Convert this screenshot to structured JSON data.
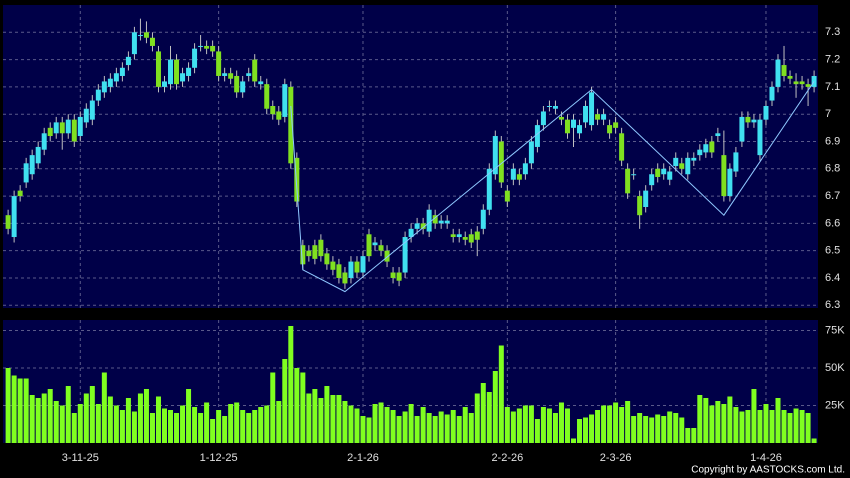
{
  "chart_data": [
    {
      "type": "candlestick",
      "up_color": "#40e0f0",
      "down_color": "#80e020",
      "open": [
        6.63,
        6.55,
        6.72,
        6.75,
        6.78,
        6.82,
        6.87,
        6.95,
        6.93,
        6.97,
        6.93,
        6.98,
        6.92,
        6.97,
        6.98,
        7.05,
        7.08,
        7.1,
        7.12,
        7.14,
        7.18,
        7.22,
        7.29,
        7.3,
        7.28,
        7.23,
        7.1,
        7.11,
        7.2,
        7.12,
        7.14,
        7.17,
        7.25,
        7.25,
        7.25,
        7.23,
        7.14,
        7.15,
        7.14,
        7.08,
        7.14,
        7.2,
        7.11,
        7.11,
        7.03,
        7.01,
        6.99,
        7.1,
        6.84,
        6.52,
        6.5,
        6.52,
        6.54,
        6.49,
        6.46,
        6.45,
        6.42,
        6.4,
        6.46,
        6.42,
        6.56,
        6.52,
        6.52,
        6.5,
        6.42,
        6.42,
        6.42,
        6.55,
        6.58,
        6.6,
        6.57,
        6.63,
        6.6,
        6.6,
        6.56,
        6.55,
        6.55,
        6.56,
        6.57,
        6.58,
        6.65,
        6.78,
        6.9,
        6.72,
        6.76,
        6.78,
        6.78,
        6.82,
        6.88,
        6.96,
        7.03,
        7.02,
        6.99,
        6.98,
        6.95,
        6.93,
        6.97,
        6.96,
        7.0,
        6.98,
        6.96,
        6.97,
        6.93,
        6.8,
        6.78,
        6.7,
        6.66,
        6.74,
        6.8,
        6.78,
        6.76,
        6.81,
        6.82,
        6.78,
        6.83,
        6.85,
        6.86,
        6.9,
        6.92,
        6.85,
        6.7,
        6.79,
        6.9,
        6.99,
        6.97,
        6.85,
        6.98,
        7.05,
        7.1,
        7.18,
        7.14,
        7.12,
        7.12,
        7.11,
        7.1
      ],
      "high": [
        6.65,
        6.72,
        6.74,
        6.84,
        6.87,
        6.9,
        6.95,
        6.97,
        6.99,
        6.99,
        7.0,
        7.0,
        7.01,
        7.04,
        7.07,
        7.11,
        7.14,
        7.15,
        7.17,
        7.19,
        7.23,
        7.32,
        7.35,
        7.34,
        7.3,
        7.25,
        7.14,
        7.25,
        7.22,
        7.17,
        7.19,
        7.26,
        7.29,
        7.27,
        7.27,
        7.25,
        7.17,
        7.17,
        7.16,
        7.14,
        7.17,
        7.22,
        7.14,
        7.13,
        7.05,
        7.03,
        7.13,
        7.12,
        6.86,
        6.54,
        6.52,
        6.54,
        6.56,
        6.51,
        6.48,
        6.47,
        6.44,
        6.48,
        6.48,
        6.5,
        6.58,
        6.55,
        6.54,
        6.52,
        6.44,
        6.44,
        6.57,
        6.6,
        6.62,
        6.62,
        6.67,
        6.65,
        6.63,
        6.63,
        6.58,
        6.58,
        6.57,
        6.58,
        6.59,
        6.67,
        6.82,
        6.94,
        6.92,
        6.74,
        6.82,
        6.8,
        6.84,
        6.92,
        6.98,
        7.03,
        7.05,
        7.05,
        7.01,
        7.0,
        7.0,
        6.98,
        7.05,
        7.1,
        7.02,
        7.02,
        6.98,
        6.99,
        6.95,
        6.82,
        6.8,
        6.72,
        6.74,
        6.8,
        6.82,
        6.82,
        6.81,
        6.86,
        6.84,
        6.86,
        6.86,
        6.89,
        6.91,
        6.92,
        6.95,
        6.94,
        6.82,
        6.88,
        7.01,
        7.01,
        7.0,
        7.0,
        7.05,
        7.12,
        7.22,
        7.25,
        7.16,
        7.15,
        7.14,
        7.13,
        7.16
      ],
      "low": [
        6.56,
        6.53,
        6.68,
        6.73,
        6.76,
        6.8,
        6.85,
        6.9,
        6.91,
        6.87,
        6.91,
        6.88,
        6.9,
        6.95,
        6.96,
        7.03,
        7.06,
        7.08,
        7.1,
        7.12,
        7.16,
        7.2,
        7.27,
        7.26,
        7.23,
        7.08,
        7.08,
        7.09,
        7.09,
        7.1,
        7.12,
        7.15,
        7.23,
        7.22,
        7.21,
        7.12,
        7.12,
        7.11,
        7.06,
        7.06,
        7.12,
        7.1,
        7.09,
        7.0,
        6.98,
        6.96,
        6.97,
        6.8,
        6.66,
        6.43,
        6.46,
        6.45,
        6.46,
        6.43,
        6.41,
        6.38,
        6.36,
        6.38,
        6.4,
        6.4,
        6.46,
        6.5,
        6.48,
        6.44,
        6.38,
        6.37,
        6.4,
        6.53,
        6.56,
        6.56,
        6.55,
        6.58,
        6.58,
        6.58,
        6.53,
        6.53,
        6.52,
        6.51,
        6.48,
        6.56,
        6.63,
        6.76,
        6.73,
        6.66,
        6.74,
        6.74,
        6.76,
        6.8,
        6.86,
        6.94,
        7.01,
        7.0,
        6.96,
        6.91,
        6.88,
        6.91,
        6.95,
        6.94,
        6.96,
        6.96,
        6.91,
        6.93,
        6.81,
        6.69,
        6.76,
        6.58,
        6.64,
        6.72,
        6.75,
        6.76,
        6.74,
        6.79,
        6.78,
        6.76,
        6.81,
        6.83,
        6.84,
        6.84,
        6.9,
        6.68,
        6.68,
        6.77,
        6.88,
        6.95,
        6.95,
        6.83,
        6.96,
        7.03,
        7.08,
        7.12,
        7.11,
        7.06,
        7.09,
        7.03,
        7.08
      ],
      "close": [
        6.58,
        6.7,
        6.7,
        6.82,
        6.85,
        6.88,
        6.93,
        6.92,
        6.97,
        6.93,
        6.98,
        6.9,
        6.99,
        7.02,
        7.05,
        7.09,
        7.12,
        7.13,
        7.15,
        7.17,
        7.21,
        7.3,
        7.29,
        7.28,
        7.25,
        7.1,
        7.12,
        7.2,
        7.11,
        7.15,
        7.17,
        7.24,
        7.25,
        7.24,
        7.23,
        7.14,
        7.15,
        7.13,
        7.08,
        7.12,
        7.15,
        7.12,
        7.12,
        7.02,
        7.0,
        6.98,
        7.11,
        6.82,
        6.68,
        6.45,
        6.48,
        6.47,
        6.48,
        6.45,
        6.43,
        6.4,
        6.38,
        6.46,
        6.42,
        6.48,
        6.48,
        6.53,
        6.5,
        6.46,
        6.4,
        6.39,
        6.55,
        6.58,
        6.6,
        6.58,
        6.65,
        6.6,
        6.61,
        6.61,
        6.55,
        6.56,
        6.54,
        6.53,
        6.54,
        6.65,
        6.8,
        6.92,
        6.75,
        6.68,
        6.8,
        6.76,
        6.82,
        6.9,
        6.96,
        7.01,
        7.03,
        7.03,
        6.98,
        6.93,
        6.98,
        6.96,
        7.03,
        7.08,
        6.98,
        7.0,
        6.93,
        6.95,
        6.83,
        6.71,
        6.78,
        6.63,
        6.72,
        6.78,
        6.77,
        6.8,
        6.79,
        6.84,
        6.8,
        6.84,
        6.84,
        6.87,
        6.89,
        6.86,
        6.93,
        6.7,
        6.8,
        6.86,
        6.99,
        6.97,
        6.98,
        6.98,
        7.03,
        7.1,
        7.2,
        7.14,
        7.13,
        7.11,
        7.11,
        7.1,
        7.14
      ],
      "overlay": {
        "x": [
          47,
          49,
          56,
          97,
          119,
          134
        ],
        "values": [
          7.03,
          6.43,
          6.35,
          7.09,
          6.63,
          7.12
        ],
        "color": "#8fc8ff"
      },
      "ylim": [
        6.29,
        7.4
      ],
      "yticks": [
        6.3,
        6.4,
        6.5,
        6.6,
        6.7,
        6.8,
        6.9,
        7,
        7.1,
        7.2,
        7.3
      ],
      "grid": true
    },
    {
      "type": "bar",
      "color": "#80ff20",
      "categories": [
        null,
        null,
        null,
        null,
        null,
        null,
        null,
        null,
        null,
        null,
        null,
        null,
        "3-11-25",
        null,
        null,
        null,
        null,
        null,
        null,
        null,
        null,
        null,
        null,
        null,
        null,
        null,
        null,
        null,
        null,
        null,
        null,
        null,
        null,
        null,
        null,
        "1-12-25",
        null,
        null,
        null,
        null,
        null,
        null,
        null,
        null,
        null,
        null,
        null,
        null,
        null,
        null,
        null,
        null,
        null,
        null,
        null,
        null,
        null,
        null,
        null,
        "2-1-26",
        null,
        null,
        null,
        null,
        null,
        null,
        null,
        null,
        null,
        null,
        null,
        null,
        null,
        null,
        null,
        null,
        null,
        null,
        null,
        null,
        null,
        null,
        null,
        "2-2-26",
        null,
        null,
        null,
        null,
        null,
        null,
        null,
        null,
        null,
        null,
        null,
        null,
        null,
        null,
        null,
        null,
        null,
        "2-3-26",
        null,
        null,
        null,
        null,
        null,
        null,
        null,
        null,
        null,
        null,
        null,
        null,
        null,
        null,
        null,
        null,
        null,
        null,
        null,
        null,
        null,
        null,
        null,
        null,
        "1-4-26",
        null,
        null,
        null,
        null,
        null,
        null,
        null,
        null
      ],
      "values": [
        50000,
        45000,
        43000,
        43000,
        32000,
        30000,
        33000,
        36000,
        28000,
        25000,
        38000,
        20000,
        26000,
        33000,
        38000,
        26000,
        47000,
        31000,
        25000,
        22000,
        30000,
        21000,
        33000,
        36000,
        20000,
        31000,
        23000,
        22000,
        20000,
        25000,
        36000,
        24000,
        20000,
        27000,
        16000,
        22000,
        18000,
        26000,
        27000,
        22000,
        20000,
        22000,
        24000,
        25000,
        47000,
        28000,
        56000,
        78000,
        50000,
        47000,
        33000,
        36000,
        30000,
        38000,
        32000,
        32000,
        28000,
        25000,
        23000,
        18000,
        17000,
        26000,
        27000,
        24000,
        22000,
        18000,
        21000,
        26000,
        18000,
        24000,
        20000,
        18000,
        21000,
        19000,
        22000,
        18000,
        24000,
        20000,
        33000,
        40000,
        34000,
        48000,
        65000,
        24000,
        21000,
        23000,
        25000,
        25000,
        16000,
        24000,
        23000,
        20000,
        27000,
        23000,
        3000,
        16000,
        17000,
        19000,
        22000,
        25000,
        25000,
        27000,
        24000,
        28000,
        18000,
        20000,
        18000,
        17000,
        19000,
        18000,
        21000,
        20000,
        17000,
        10000,
        10000,
        32000,
        30000,
        25000,
        28000,
        26000,
        31000,
        24000,
        21000,
        22000,
        36000,
        22000,
        26000,
        22000,
        30000,
        22000,
        20000,
        23000,
        22000,
        20000,
        3000
      ],
      "ylim": [
        0,
        82000
      ],
      "yticks": [
        {
          "value": 25000,
          "label": "25K"
        },
        {
          "value": 50000,
          "label": "50K"
        },
        {
          "value": 75000,
          "label": "75K"
        }
      ],
      "grid": true
    }
  ],
  "footer": "Copyright by AASTOCKS.com Ltd."
}
